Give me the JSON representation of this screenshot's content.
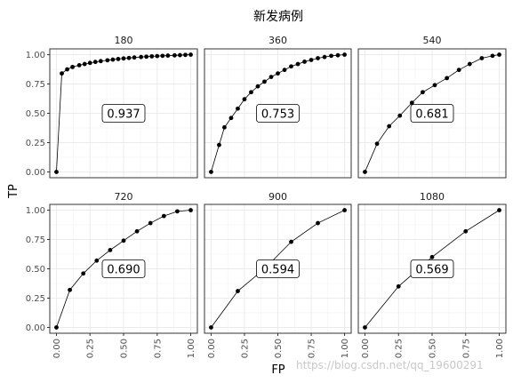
{
  "chart_data": {
    "type": "line",
    "title": "新发病例",
    "xlabel": "FP",
    "ylabel": "TP",
    "xlim": [
      0,
      1
    ],
    "ylim": [
      0,
      1
    ],
    "x_ticks": [
      "0.00",
      "0.25",
      "0.50",
      "0.75",
      "1.00"
    ],
    "y_ticks": [
      "0.00",
      "0.25",
      "0.50",
      "0.75",
      "1.00"
    ],
    "grid": true,
    "panels": [
      {
        "name": "180",
        "auc": "0.937",
        "points": [
          [
            0,
            0
          ],
          [
            0.04,
            0.84
          ],
          [
            0.08,
            0.875
          ],
          [
            0.12,
            0.895
          ],
          [
            0.17,
            0.91
          ],
          [
            0.21,
            0.92
          ],
          [
            0.25,
            0.93
          ],
          [
            0.29,
            0.938
          ],
          [
            0.33,
            0.945
          ],
          [
            0.38,
            0.952
          ],
          [
            0.42,
            0.958
          ],
          [
            0.46,
            0.963
          ],
          [
            0.5,
            0.968
          ],
          [
            0.54,
            0.972
          ],
          [
            0.58,
            0.976
          ],
          [
            0.63,
            0.98
          ],
          [
            0.67,
            0.983
          ],
          [
            0.71,
            0.986
          ],
          [
            0.75,
            0.988
          ],
          [
            0.79,
            0.99
          ],
          [
            0.83,
            0.992
          ],
          [
            0.88,
            0.994
          ],
          [
            0.92,
            0.996
          ],
          [
            0.96,
            0.998
          ],
          [
            1,
            1
          ]
        ]
      },
      {
        "name": "360",
        "auc": "0.753",
        "points": [
          [
            0,
            0
          ],
          [
            0.06,
            0.23
          ],
          [
            0.1,
            0.38
          ],
          [
            0.15,
            0.46
          ],
          [
            0.2,
            0.54
          ],
          [
            0.25,
            0.62
          ],
          [
            0.3,
            0.68
          ],
          [
            0.35,
            0.73
          ],
          [
            0.4,
            0.77
          ],
          [
            0.45,
            0.81
          ],
          [
            0.5,
            0.84
          ],
          [
            0.55,
            0.87
          ],
          [
            0.6,
            0.9
          ],
          [
            0.65,
            0.92
          ],
          [
            0.7,
            0.94
          ],
          [
            0.75,
            0.955
          ],
          [
            0.8,
            0.97
          ],
          [
            0.85,
            0.98
          ],
          [
            0.9,
            0.99
          ],
          [
            0.95,
            0.995
          ],
          [
            1,
            1
          ]
        ]
      },
      {
        "name": "540",
        "auc": "0.681",
        "points": [
          [
            0,
            0
          ],
          [
            0.09,
            0.24
          ],
          [
            0.18,
            0.39
          ],
          [
            0.26,
            0.48
          ],
          [
            0.35,
            0.59
          ],
          [
            0.43,
            0.68
          ],
          [
            0.52,
            0.74
          ],
          [
            0.61,
            0.8
          ],
          [
            0.7,
            0.87
          ],
          [
            0.78,
            0.92
          ],
          [
            0.87,
            0.97
          ],
          [
            0.95,
            0.99
          ],
          [
            1,
            1
          ]
        ]
      },
      {
        "name": "720",
        "auc": "0.690",
        "points": [
          [
            0,
            0
          ],
          [
            0.1,
            0.32
          ],
          [
            0.2,
            0.46
          ],
          [
            0.3,
            0.57
          ],
          [
            0.4,
            0.66
          ],
          [
            0.5,
            0.74
          ],
          [
            0.6,
            0.82
          ],
          [
            0.7,
            0.89
          ],
          [
            0.8,
            0.95
          ],
          [
            0.9,
            0.99
          ],
          [
            1,
            1
          ]
        ]
      },
      {
        "name": "900",
        "auc": "0.594",
        "points": [
          [
            0,
            0
          ],
          [
            0.2,
            0.31
          ],
          [
            0.4,
            0.5
          ],
          [
            0.6,
            0.73
          ],
          [
            0.8,
            0.89
          ],
          [
            1,
            1
          ]
        ]
      },
      {
        "name": "1080",
        "auc": "0.569",
        "points": [
          [
            0,
            0
          ],
          [
            0.25,
            0.35
          ],
          [
            0.5,
            0.6
          ],
          [
            0.75,
            0.82
          ],
          [
            1,
            1
          ]
        ]
      }
    ]
  },
  "watermark": "https://blog.csdn.net/qq_19600291"
}
